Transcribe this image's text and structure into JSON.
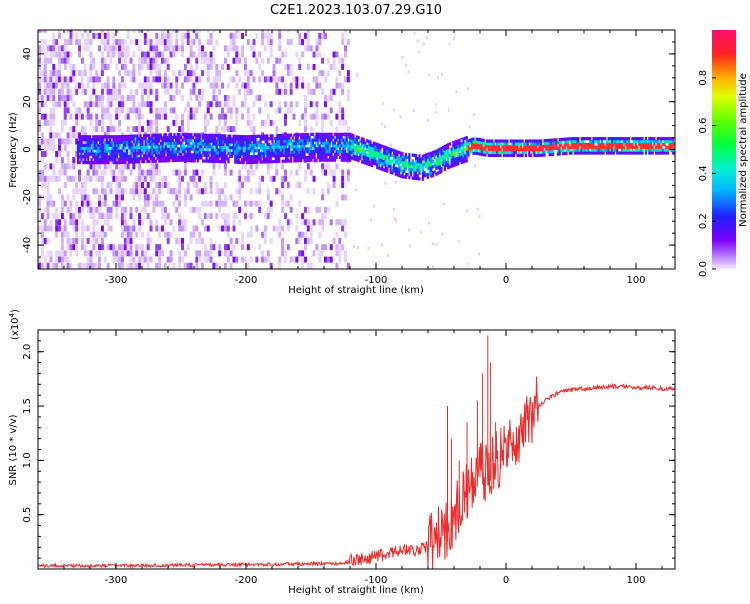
{
  "figure_title": "C2E1.2023.103.07.29.G10",
  "chart_data": [
    {
      "type": "heatmap",
      "name": "spectrogram",
      "xlabel": "Height of straight line (km)",
      "ylabel": "Frequency (Hz)",
      "xlim": [
        -360,
        130
      ],
      "ylim": [
        -50,
        50
      ],
      "x_ticks": [
        -300,
        -200,
        -100,
        0,
        100
      ],
      "x_tick_labels": [
        "-300",
        "-200",
        "-100",
        "0",
        "100"
      ],
      "y_ticks": [
        -40,
        -20,
        0,
        20,
        40
      ],
      "y_tick_labels": [
        "-40",
        "-20",
        "0",
        "20",
        "40"
      ],
      "colorbar": {
        "label": "Normalized spectral amplitude",
        "range": [
          0,
          1
        ],
        "ticks": [
          0.0,
          0.2,
          0.4,
          0.6,
          0.8
        ],
        "tick_labels": [
          "0.0",
          "0.2",
          "0.4",
          "0.6",
          "0.8"
        ]
      },
      "signal_ridge": {
        "description": "frequency of the main signal line vs height",
        "x": [
          -330,
          -300,
          -250,
          -200,
          -150,
          -120,
          -100,
          -80,
          -65,
          -55,
          -45,
          -35,
          -25,
          -15,
          0,
          25,
          50,
          80,
          100,
          130
        ],
        "y": [
          0,
          0,
          1,
          0,
          1,
          1,
          -3,
          -7,
          -8,
          -6,
          -3,
          -1,
          1,
          0,
          0,
          0,
          1,
          1,
          1,
          1
        ]
      }
    },
    {
      "type": "line",
      "name": "snr",
      "xlabel": "Height of straight line (km)",
      "ylabel": "SNR (10 * v/v)",
      "y_multiplier_base": "(x10",
      "y_multiplier_exp": "4",
      "y_multiplier_close": ")",
      "xlim": [
        -360,
        130
      ],
      "ylim": [
        0,
        2.2
      ],
      "x_ticks": [
        -300,
        -200,
        -100,
        0,
        100
      ],
      "x_tick_labels": [
        "-300",
        "-200",
        "-100",
        "0",
        "100"
      ],
      "y_ticks": [
        0.5,
        1.0,
        1.5,
        2.0
      ],
      "y_tick_labels": [
        "0.5",
        "1.0",
        "1.5",
        "2.0"
      ],
      "series": [
        {
          "name": "SNR",
          "color": "#ee2a2a",
          "x": [
            -360,
            -300,
            -200,
            -130,
            -110,
            -100,
            -90,
            -80,
            -70,
            -60,
            -50,
            -45,
            -40,
            -35,
            -30,
            -25,
            -20,
            -15,
            -10,
            -5,
            0,
            5,
            10,
            15,
            20,
            25,
            30,
            40,
            50,
            60,
            70,
            80,
            90,
            100,
            110,
            120,
            130
          ],
          "y": [
            0.03,
            0.03,
            0.04,
            0.05,
            0.08,
            0.1,
            0.13,
            0.17,
            0.16,
            0.2,
            0.3,
            0.35,
            0.45,
            0.6,
            0.7,
            0.8,
            0.9,
            0.85,
            0.95,
            1.0,
            1.1,
            1.15,
            1.2,
            1.3,
            1.4,
            1.5,
            1.55,
            1.62,
            1.65,
            1.66,
            1.67,
            1.68,
            1.68,
            1.67,
            1.67,
            1.66,
            1.66
          ]
        }
      ],
      "spikes": [
        {
          "x": -45,
          "y": 1.5
        },
        {
          "x": -42,
          "y": 1.2
        },
        {
          "x": -36,
          "y": 1.0
        },
        {
          "x": -30,
          "y": 1.35
        },
        {
          "x": -22,
          "y": 1.55
        },
        {
          "x": -18,
          "y": 1.8
        },
        {
          "x": -14,
          "y": 2.15
        },
        {
          "x": -12,
          "y": 1.9
        },
        {
          "x": -8,
          "y": 1.35
        },
        {
          "x": -4,
          "y": 1.3
        },
        {
          "x": 2,
          "y": 1.28
        },
        {
          "x": 10,
          "y": 1.32
        }
      ]
    }
  ]
}
